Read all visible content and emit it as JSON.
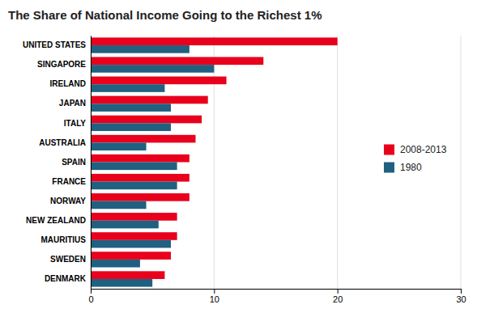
{
  "chart_data": {
    "type": "bar",
    "orientation": "horizontal",
    "title": "The Share of National Income Going to the Richest 1%",
    "categories": [
      "UNITED STATES",
      "SINGAPORE",
      "IRELAND",
      "JAPAN",
      "ITALY",
      "AUSTRALIA",
      "SPAIN",
      "FRANCE",
      "NORWAY",
      "NEW ZEALAND",
      "MAURITIUS",
      "SWEDEN",
      "DENMARK"
    ],
    "series": [
      {
        "name": "2008-2013",
        "color": "#e8001c",
        "values": [
          20,
          14,
          11,
          9.5,
          9,
          8.5,
          8,
          8,
          8,
          7,
          7,
          6.5,
          6
        ]
      },
      {
        "name": "1980",
        "color": "#206080",
        "values": [
          8,
          10,
          6,
          6.5,
          6.5,
          4.5,
          7,
          7,
          4.5,
          5.5,
          6.5,
          4,
          5
        ]
      }
    ],
    "xlim": [
      0,
      30
    ],
    "xticks": [
      0,
      10,
      20,
      30
    ],
    "grid": true,
    "legend": "right"
  }
}
